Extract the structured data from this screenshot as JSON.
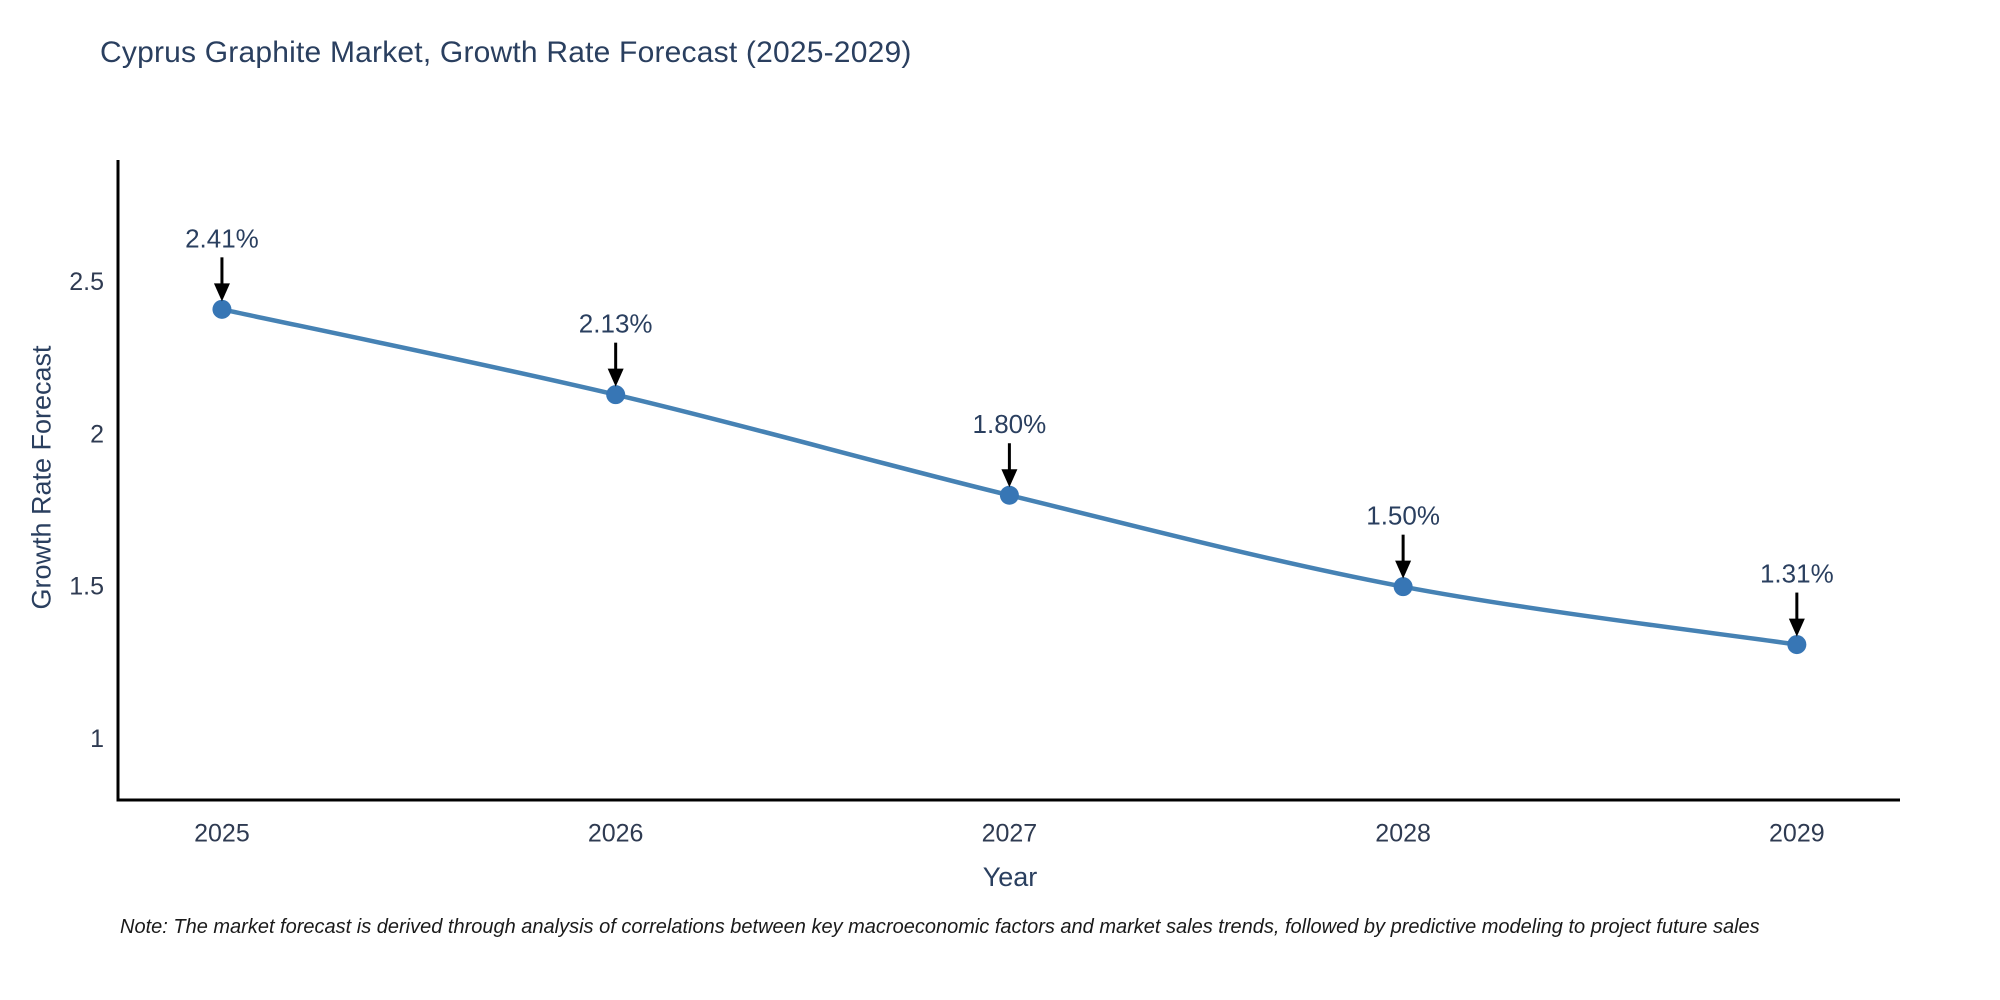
{
  "title": "Cyprus Graphite Market, Growth Rate Forecast (2025-2029)",
  "footnote": "Note: The market forecast is derived through analysis of correlations between key macroeconomic factors and market sales trends, followed by predictive modeling to project future sales",
  "chart_data": {
    "type": "line",
    "title": "Cyprus Graphite Market, Growth Rate Forecast (2025-2029)",
    "xlabel": "Year",
    "ylabel": "Growth Rate Forecast",
    "x": [
      2025,
      2026,
      2027,
      2028,
      2029
    ],
    "values": [
      2.41,
      2.13,
      1.8,
      1.5,
      1.31
    ],
    "point_labels": [
      "2.41%",
      "2.13%",
      "1.80%",
      "1.50%",
      "1.31%"
    ],
    "xticks": [
      2025,
      2026,
      2027,
      2028,
      2029
    ],
    "xtick_labels": [
      "2025",
      "2026",
      "2027",
      "2028",
      "2029"
    ],
    "yticks": [
      1,
      1.5,
      2,
      2.5
    ],
    "ytick_labels": [
      "1",
      "1.5",
      "2",
      "2.5"
    ],
    "xlim": [
      2024.736,
      2029.262
    ],
    "ylim": [
      0.8,
      2.9
    ],
    "grid": false,
    "legend": "none",
    "line_color": "#4682b4",
    "marker_color": "#3776b5",
    "axis_color": "#000000",
    "tick_color": "#2f3b52",
    "annotation_color": "#2a3f5f",
    "arrow_color": "#000000"
  }
}
